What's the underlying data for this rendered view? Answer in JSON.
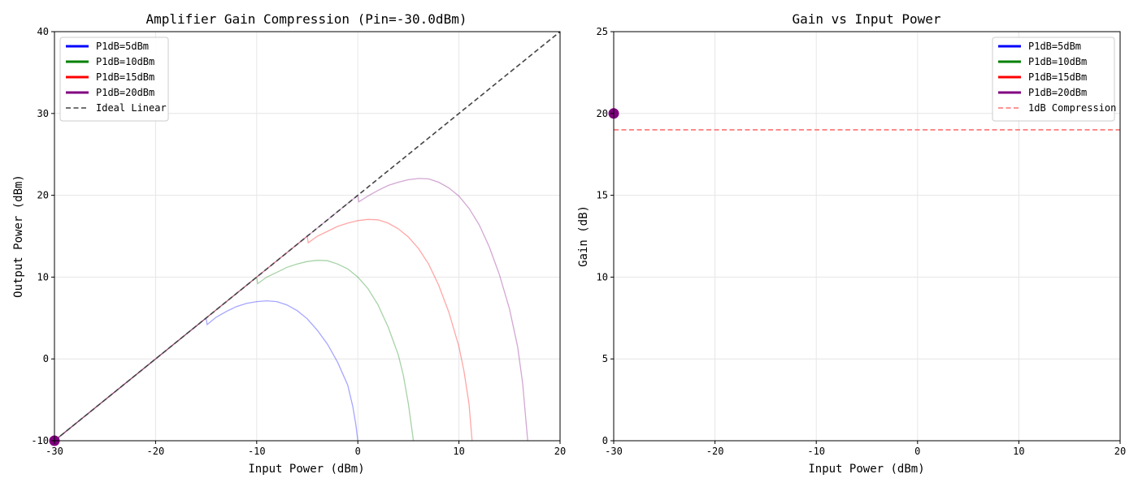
{
  "chart_data": [
    {
      "type": "line",
      "title": "Amplifier Gain Compression (Pin=-30.0dBm)",
      "xlabel": "Input Power (dBm)",
      "ylabel": "Output Power (dBm)",
      "xlim": [
        -30,
        20
      ],
      "ylim": [
        -10,
        40
      ],
      "xticks": [
        "-30",
        "-20",
        "-10",
        "0",
        "10",
        "20"
      ],
      "yticks": [
        "-10",
        "0",
        "10",
        "20",
        "30",
        "40"
      ],
      "grid": true,
      "legend": "top-left",
      "series": [
        {
          "name": "P1dB=5dBm",
          "color": "#0000ff",
          "p1db": 5
        },
        {
          "name": "P1dB=10dBm",
          "color": "#008000",
          "p1db": 10
        },
        {
          "name": "P1dB=15dBm",
          "color": "#ff0000",
          "p1db": 15
        },
        {
          "name": "P1dB=20dBm",
          "color": "#800080",
          "p1db": 20
        },
        {
          "name": "Ideal Linear",
          "color": "#444444",
          "style": "dashed"
        }
      ],
      "curves": [
        {
          "color": "#0000ff",
          "points": [
            [
              -30,
              -10
            ],
            [
              -25,
              -5
            ],
            [
              -20,
              0
            ],
            [
              -15,
              5
            ],
            [
              -14.9,
              4.2
            ],
            [
              -14,
              5.1
            ],
            [
              -13,
              5.8
            ],
            [
              -12,
              6.4
            ],
            [
              -11,
              6.8
            ],
            [
              -10,
              7.0
            ],
            [
              -9,
              7.1
            ],
            [
              -8,
              7.0
            ],
            [
              -7,
              6.6
            ],
            [
              -6,
              5.9
            ],
            [
              -5,
              4.9
            ],
            [
              -4,
              3.5
            ],
            [
              -3,
              1.8
            ],
            [
              -2,
              -0.4
            ],
            [
              -1,
              -3.2
            ],
            [
              -0.5,
              -5.8
            ],
            [
              -0.2,
              -8.0
            ],
            [
              0,
              -10
            ]
          ]
        },
        {
          "color": "#008000",
          "points": [
            [
              -30,
              -10
            ],
            [
              -20,
              0
            ],
            [
              -15,
              5
            ],
            [
              -10,
              10
            ],
            [
              -9.9,
              9.2
            ],
            [
              -9,
              10.0
            ],
            [
              -8,
              10.6
            ],
            [
              -7,
              11.2
            ],
            [
              -6,
              11.6
            ],
            [
              -5,
              11.9
            ],
            [
              -4,
              12.05
            ],
            [
              -3,
              12.0
            ],
            [
              -2,
              11.6
            ],
            [
              -1,
              11.0
            ],
            [
              0,
              10.0
            ],
            [
              1,
              8.6
            ],
            [
              2,
              6.6
            ],
            [
              3,
              3.9
            ],
            [
              4,
              0.5
            ],
            [
              4.5,
              -2.0
            ],
            [
              5,
              -5.5
            ],
            [
              5.5,
              -10
            ]
          ]
        },
        {
          "color": "#ff0000",
          "points": [
            [
              -30,
              -10
            ],
            [
              -20,
              0
            ],
            [
              -10,
              10
            ],
            [
              -5,
              15
            ],
            [
              -4.9,
              14.2
            ],
            [
              -4,
              15.0
            ],
            [
              -3,
              15.6
            ],
            [
              -2,
              16.2
            ],
            [
              -1,
              16.6
            ],
            [
              0,
              16.9
            ],
            [
              1,
              17.05
            ],
            [
              2,
              17.0
            ],
            [
              3,
              16.6
            ],
            [
              4,
              15.9
            ],
            [
              5,
              14.9
            ],
            [
              6,
              13.5
            ],
            [
              7,
              11.6
            ],
            [
              8,
              9.0
            ],
            [
              9,
              5.7
            ],
            [
              10,
              1.5
            ],
            [
              10.5,
              -1.5
            ],
            [
              11,
              -5.5
            ],
            [
              11.3,
              -10
            ]
          ]
        },
        {
          "color": "#800080",
          "points": [
            [
              -30,
              -10
            ],
            [
              -20,
              0
            ],
            [
              -10,
              10
            ],
            [
              0,
              20
            ],
            [
              0.1,
              19.2
            ],
            [
              1,
              19.9
            ],
            [
              2,
              20.6
            ],
            [
              3,
              21.2
            ],
            [
              4,
              21.6
            ],
            [
              5,
              21.9
            ],
            [
              6,
              22.05
            ],
            [
              7,
              22.0
            ],
            [
              8,
              21.6
            ],
            [
              9,
              20.9
            ],
            [
              10,
              19.9
            ],
            [
              11,
              18.4
            ],
            [
              12,
              16.4
            ],
            [
              13,
              13.7
            ],
            [
              14,
              10.3
            ],
            [
              15,
              6.1
            ],
            [
              15.8,
              1.5
            ],
            [
              16.3,
              -3.0
            ],
            [
              16.8,
              -10
            ]
          ]
        }
      ],
      "ideal": [
        [
          -30,
          -10
        ],
        [
          20,
          40
        ]
      ],
      "marker": {
        "x": -30,
        "y": -10,
        "color": "#800080"
      }
    },
    {
      "type": "line",
      "title": "Gain vs Input Power",
      "xlabel": "Input Power (dBm)",
      "ylabel": "Gain (dB)",
      "xlim": [
        -30,
        20
      ],
      "ylim": [
        0,
        25
      ],
      "xticks": [
        "-30",
        "-20",
        "-10",
        "0",
        "10",
        "20"
      ],
      "yticks": [
        "0",
        "5",
        "10",
        "15",
        "20",
        "25"
      ],
      "grid": true,
      "legend": "top-right",
      "series": [
        {
          "name": "P1dB=5dBm",
          "color": "#0000ff"
        },
        {
          "name": "P1dB=10dBm",
          "color": "#008000"
        },
        {
          "name": "P1dB=15dBm",
          "color": "#ff0000"
        },
        {
          "name": "P1dB=20dBm",
          "color": "#800080"
        },
        {
          "name": "1dB Compression",
          "color": "#ff7070",
          "style": "dashed"
        }
      ],
      "compression_line": 19,
      "marker": {
        "x": -30,
        "y": 20,
        "color": "#800080"
      }
    }
  ]
}
